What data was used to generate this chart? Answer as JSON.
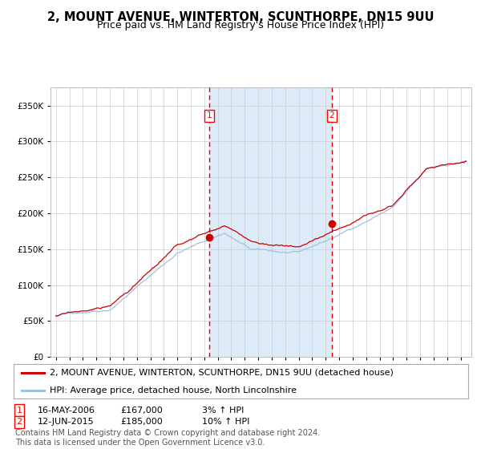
{
  "title": "2, MOUNT AVENUE, WINTERTON, SCUNTHORPE, DN15 9UU",
  "subtitle": "Price paid vs. HM Land Registry's House Price Index (HPI)",
  "legend_line1": "2, MOUNT AVENUE, WINTERTON, SCUNTHORPE, DN15 9UU (detached house)",
  "legend_line2": "HPI: Average price, detached house, North Lincolnshire",
  "annotation1_label": "1",
  "annotation1_date": "16-MAY-2006",
  "annotation1_price": "£167,000",
  "annotation1_hpi": "3% ↑ HPI",
  "annotation2_label": "2",
  "annotation2_date": "12-JUN-2015",
  "annotation2_price": "£185,000",
  "annotation2_hpi": "10% ↑ HPI",
  "sale1_year": 2006.37,
  "sale1_value": 167000,
  "sale2_year": 2015.45,
  "sale2_value": 185000,
  "ylim_min": 0,
  "ylim_max": 375000,
  "xlim_start": 1994.6,
  "xlim_end": 2025.8,
  "background_color": "#ffffff",
  "plot_bg_color": "#ffffff",
  "shade_color": "#ddeaf7",
  "grid_color": "#cccccc",
  "hpi_line_color": "#9dc3e0",
  "price_line_color": "#cc0000",
  "dashed_line_color": "#dd0000",
  "dot_color": "#cc0000",
  "footer_text": "Contains HM Land Registry data © Crown copyright and database right 2024.\nThis data is licensed under the Open Government Licence v3.0.",
  "title_fontsize": 10.5,
  "subtitle_fontsize": 9,
  "tick_fontsize": 7.5,
  "legend_fontsize": 8,
  "annotation_fontsize": 8,
  "footer_fontsize": 7
}
